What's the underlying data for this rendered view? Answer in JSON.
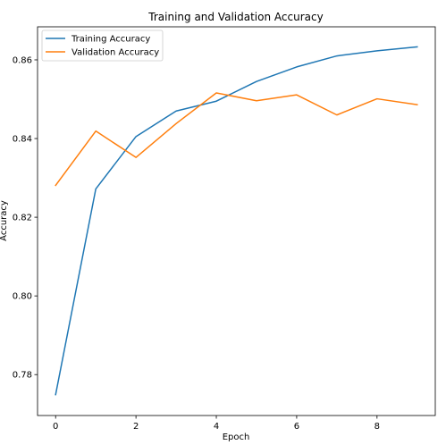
{
  "chart_data": {
    "type": "line",
    "title": "Training and Validation Accuracy",
    "xlabel": "Epoch",
    "ylabel": "Accuracy",
    "x": [
      0,
      1,
      2,
      3,
      4,
      5,
      6,
      7,
      8,
      9
    ],
    "xlim": [
      -0.45,
      9.45
    ],
    "ylim": [
      0.7696,
      0.8684
    ],
    "xticks": [
      0,
      2,
      4,
      6,
      8
    ],
    "xtick_labels": [
      "0",
      "2",
      "4",
      "6",
      "8"
    ],
    "yticks": [
      0.78,
      0.8,
      0.82,
      0.84,
      0.86
    ],
    "ytick_labels": [
      "0.78",
      "0.80",
      "0.82",
      "0.84",
      "0.86"
    ],
    "grid": false,
    "legend_position": "top-left",
    "series": [
      {
        "name": "Training Accuracy",
        "color": "#1f77b4",
        "values": [
          0.7749,
          0.8272,
          0.8405,
          0.847,
          0.8495,
          0.8545,
          0.8582,
          0.861,
          0.8623,
          0.8633
        ]
      },
      {
        "name": "Validation Accuracy",
        "color": "#ff7f0e",
        "values": [
          0.8281,
          0.8419,
          0.8352,
          0.8438,
          0.8516,
          0.8496,
          0.8511,
          0.846,
          0.8501,
          0.8486
        ]
      }
    ]
  }
}
